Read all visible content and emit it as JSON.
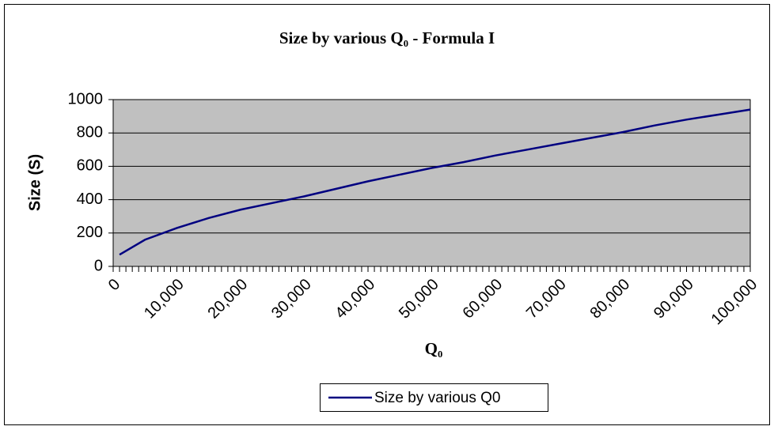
{
  "chart_data": {
    "type": "line",
    "title": "Size by various Q₀ - Formula I",
    "x_label": "Q₀",
    "y_label": "Size (S)",
    "x": [
      1000,
      5000,
      10000,
      15000,
      20000,
      25000,
      30000,
      35000,
      40000,
      45000,
      50000,
      55000,
      60000,
      65000,
      70000,
      75000,
      80000,
      85000,
      90000,
      95000,
      100000
    ],
    "series": [
      {
        "name": "Size by various Q0",
        "color": "#000080",
        "values": [
          70,
          160,
          230,
          290,
          340,
          380,
          420,
          465,
          510,
          550,
          590,
          625,
          665,
          700,
          735,
          770,
          805,
          845,
          880,
          910,
          940
        ]
      }
    ],
    "xlim": [
      0,
      100000
    ],
    "xticks": [
      0,
      {
        "value": 10000,
        "label": "10,000"
      },
      {
        "value": 20000,
        "label": "20,000"
      },
      {
        "value": 30000,
        "label": "30,000"
      },
      {
        "value": 40000,
        "label": "40,000"
      },
      {
        "value": 50000,
        "label": "50,000"
      },
      {
        "value": 60000,
        "label": "60,000"
      },
      {
        "value": 70000,
        "label": "70,000"
      },
      {
        "value": 80000,
        "label": "80,000"
      },
      {
        "value": 90000,
        "label": "90,000"
      },
      {
        "value": 100000,
        "label": "100,000"
      }
    ],
    "x_minor_per_major": 10,
    "ylim": [
      0,
      1000
    ],
    "yticks": [
      0,
      200,
      400,
      600,
      800,
      1000
    ],
    "grid": true,
    "plot_background": "#c0c0c0",
    "legend": "bottom"
  }
}
